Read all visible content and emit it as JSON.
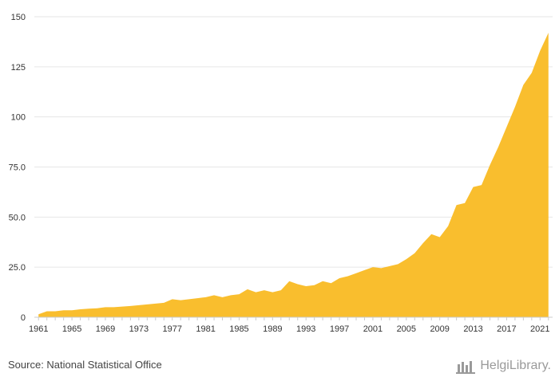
{
  "chart_data": {
    "type": "area",
    "title": "",
    "xlabel": "",
    "ylabel": "",
    "color": "#f9be2e",
    "grid": true,
    "xlim": [
      1960.5,
      2022.5
    ],
    "ylim": [
      0,
      150
    ],
    "yticks": [
      0,
      25.0,
      50.0,
      75.0,
      100,
      125,
      150
    ],
    "ytick_labels": [
      "0",
      "25.0",
      "50.0",
      "75.0",
      "100",
      "125",
      "150"
    ],
    "xticks": [
      1961,
      1965,
      1969,
      1973,
      1977,
      1981,
      1985,
      1989,
      1993,
      1997,
      2001,
      2005,
      2009,
      2013,
      2017,
      2021
    ],
    "x": [
      1961,
      1962,
      1963,
      1964,
      1965,
      1966,
      1967,
      1968,
      1969,
      1970,
      1971,
      1972,
      1973,
      1974,
      1975,
      1976,
      1977,
      1978,
      1979,
      1980,
      1981,
      1982,
      1983,
      1984,
      1985,
      1986,
      1987,
      1988,
      1989,
      1990,
      1991,
      1992,
      1993,
      1994,
      1995,
      1996,
      1997,
      1998,
      1999,
      2000,
      2001,
      2002,
      2003,
      2004,
      2005,
      2006,
      2007,
      2008,
      2009,
      2010,
      2011,
      2012,
      2013,
      2014,
      2015,
      2016,
      2017,
      2018,
      2019,
      2020,
      2021,
      2022
    ],
    "values": [
      1.5,
      3.0,
      3.0,
      3.5,
      3.5,
      4.0,
      4.3,
      4.5,
      5.0,
      5.0,
      5.3,
      5.6,
      6.0,
      6.4,
      6.8,
      7.2,
      9.0,
      8.5,
      9.0,
      9.5,
      10.0,
      11.0,
      10.0,
      11.0,
      11.5,
      14.0,
      12.5,
      13.5,
      12.5,
      13.5,
      18.0,
      16.5,
      15.5,
      16.0,
      18.0,
      17.0,
      19.5,
      20.5,
      22.0,
      23.5,
      25.0,
      24.5,
      25.5,
      26.5,
      29.0,
      32.0,
      37.0,
      41.5,
      40.0,
      45.5,
      56.0,
      57.0,
      65.0,
      66.0,
      76.0,
      85.0,
      95.0,
      105.0,
      116.0,
      122.0,
      133.0,
      142.0
    ]
  },
  "footer": {
    "source": "Source: National Statistical Office",
    "brand": "HelgiLibrary."
  }
}
